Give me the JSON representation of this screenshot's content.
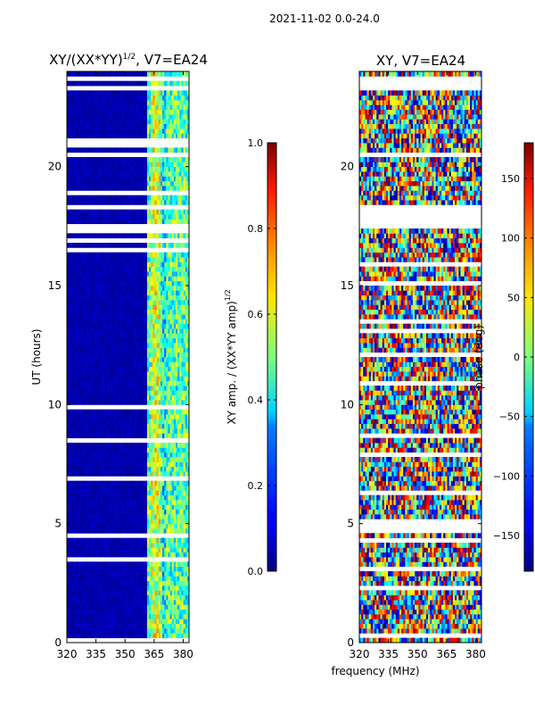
{
  "figure": {
    "suptitle": "2021-11-02 0.0-24.0",
    "common_xlabel": "frequency (MHz)"
  },
  "chart_data": [
    {
      "type": "heatmap",
      "panel": "left",
      "title": "XY/(XX*YY)^{1/2}, V7=EA24",
      "title_main": "XY/(XX*YY)",
      "title_exp": "1/2",
      "title_tail": ", V7=EA24",
      "xlabel": "",
      "ylabel": "UT (hours)",
      "xlim": [
        320,
        383
      ],
      "ylim": [
        0,
        24
      ],
      "xticks": [
        320,
        335,
        350,
        365,
        380
      ],
      "yticks": [
        0,
        5,
        10,
        15,
        20
      ],
      "colormap": "jet",
      "colorbar": {
        "label": "XY amp. / (XX*YY amp)^{1/2}",
        "label_main": "XY amp. / (XX*YY amp)",
        "label_exp": "1/2",
        "vmin": 0.0,
        "vmax": 1.0,
        "ticks": [
          "0.0",
          "0.2",
          "0.4",
          "0.6",
          "0.8",
          "1.0"
        ],
        "tick_values": [
          0.0,
          0.2,
          0.4,
          0.6,
          0.8,
          1.0
        ]
      },
      "content": "normalized cross-correlation amplitude; mostly near 0 below 360 MHz, elevated 0.3-0.7 between about 360 and 383 MHz"
    },
    {
      "type": "heatmap",
      "panel": "right",
      "title": "XY, V7=EA24",
      "xlabel": "frequency (MHz)",
      "ylabel": "",
      "xlim": [
        320,
        383
      ],
      "ylim": [
        0,
        24
      ],
      "xticks": [
        320,
        335,
        350,
        365,
        380
      ],
      "yticks": [
        0,
        5,
        10,
        15,
        20
      ],
      "colormap": "jet",
      "colorbar": {
        "label": "phase (deg)",
        "vmin": -180,
        "vmax": 180,
        "ticks": [
          "−150",
          "−100",
          "−50",
          "0",
          "50",
          "100",
          "150"
        ],
        "tick_values": [
          -150,
          -100,
          -50,
          0,
          50,
          100,
          150
        ]
      },
      "content": "XY phase, noisy across the band, values spanning -180 to 180 degrees"
    }
  ]
}
